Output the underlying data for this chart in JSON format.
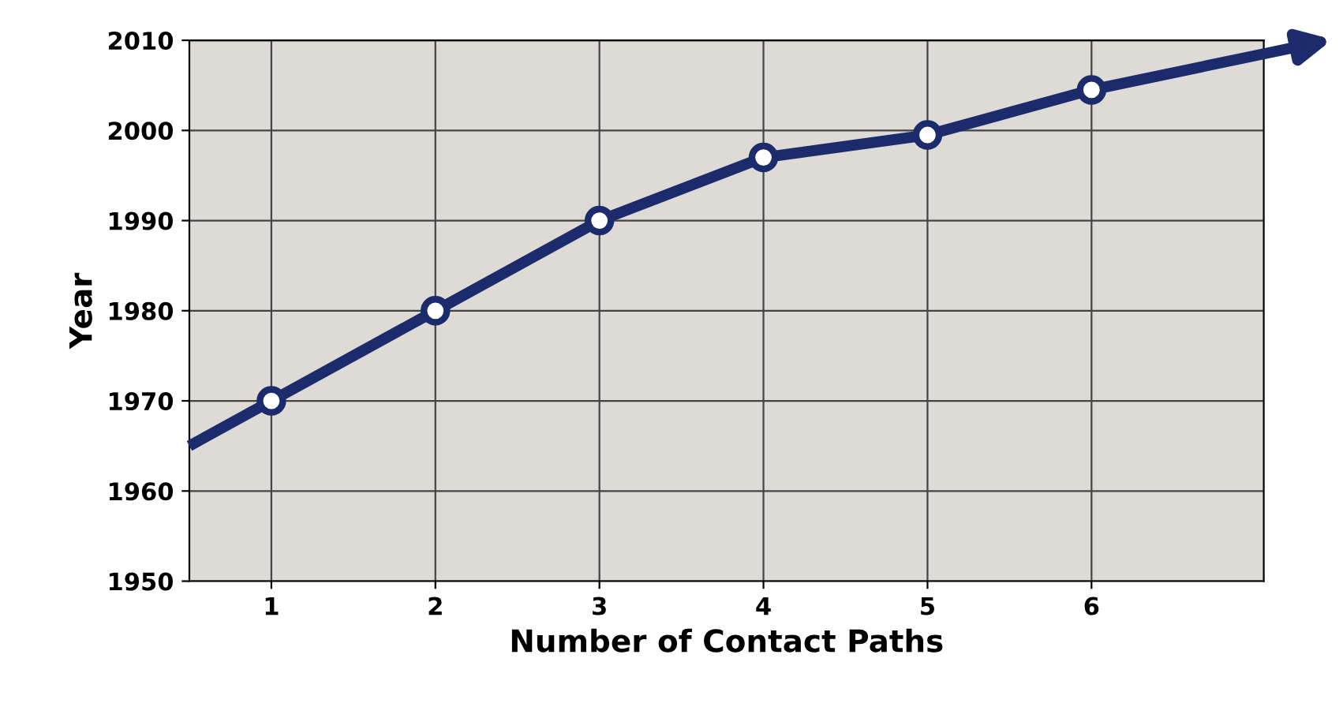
{
  "chart_data": {
    "type": "line",
    "xlabel": "Number of Contact Paths",
    "ylabel": "Year",
    "series": [
      {
        "color": "#1b2b6b",
        "x": [
          0.5,
          1,
          2,
          3,
          4,
          5,
          6,
          7.05
        ],
        "values": [
          1965,
          1970,
          1980,
          1990,
          1997,
          1999.5,
          2004.5,
          2008.5
        ],
        "marker": "none"
      },
      {
        "type": "scatter",
        "color": "#1b2b6b",
        "x": [
          1,
          2,
          3,
          4,
          5,
          6
        ],
        "values": [
          1970,
          1980,
          1990,
          1997,
          1999.5,
          2004.5
        ],
        "marker": "circle"
      }
    ],
    "xlim": [
      0.5,
      7.05
    ],
    "xticks": [
      1,
      2,
      3,
      4,
      5,
      6
    ],
    "ylim": [
      1950,
      2010
    ],
    "yticks": [
      1950,
      1960,
      1970,
      1980,
      1990,
      2000,
      2010
    ],
    "grid": true
  }
}
